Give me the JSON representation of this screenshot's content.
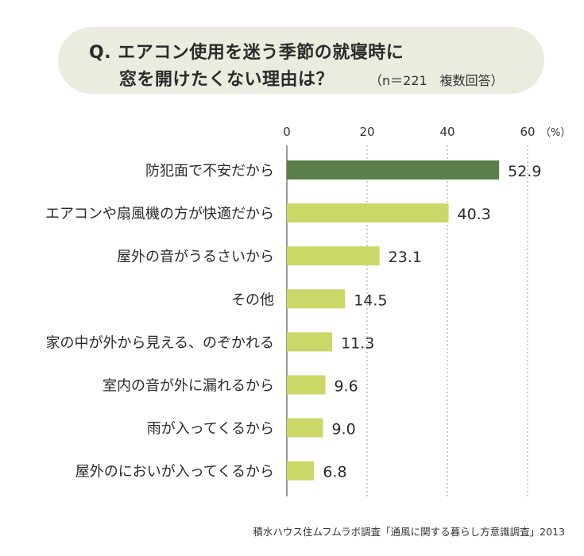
{
  "title": {
    "line1": "Q. エアコン使用を迷う季節の就寝時に",
    "line2": "窓を開けたくない理由は？",
    "note": "（n＝221　複数回答）"
  },
  "source": "積水ハウス住ムフムラボ調査「通風に関する暮らし方意識調査」2013",
  "colors": {
    "highlight": "#5a7f4a",
    "bar": "#cbd767",
    "grid": "#9a9a9a",
    "title_bg": "#ebebdf"
  },
  "chart_data": {
    "type": "bar",
    "orientation": "horizontal",
    "unit_label": "（%）",
    "xlim": [
      0,
      60
    ],
    "ticks": [
      0,
      20,
      40,
      60
    ],
    "grid": true,
    "categories": [
      "防犯面で不安だから",
      "エアコンや扇風機の方が快適だから",
      "屋外の音がうるさいから",
      "その他",
      "家の中が外から見える、のぞかれる",
      "室内の音が外に漏れるから",
      "雨が入ってくるから",
      "屋外のにおいが入ってくるから"
    ],
    "values": [
      52.9,
      40.3,
      23.1,
      14.5,
      11.3,
      9.6,
      9.0,
      6.8
    ],
    "value_labels": [
      "52.9",
      "40.3",
      "23.1",
      "14.5",
      "11.3",
      "9.6",
      "9.0",
      "6.8"
    ],
    "highlight_index": 0
  }
}
